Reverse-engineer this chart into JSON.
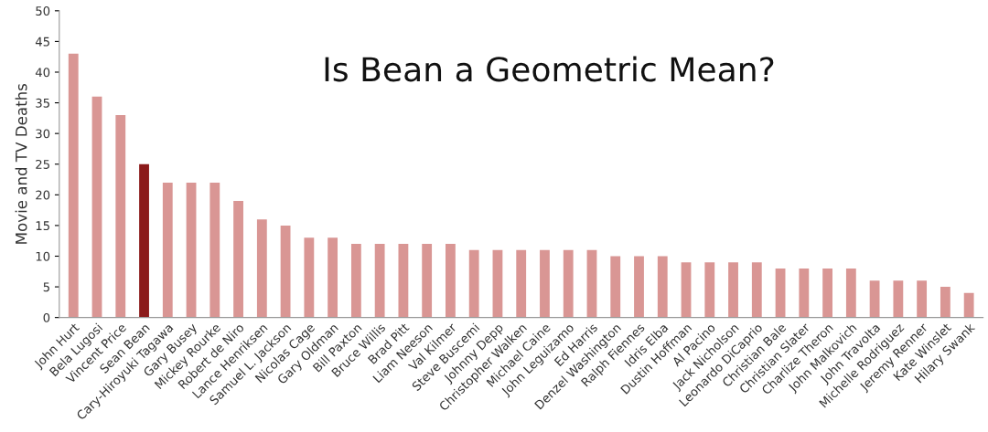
{
  "chart_data": {
    "type": "bar",
    "title": "Is Bean a Geometric Mean?",
    "ylabel": "Movie and TV Deaths",
    "categories": [
      "John Hurt",
      "Bela Lugosi",
      "Vincent Price",
      "Sean Bean",
      "Cary-Hiroyuki Tagawa",
      "Gary Busey",
      "Mickey Rourke",
      "Robert de Niro",
      "Lance Henriksen",
      "Samuel L. Jackson",
      "Nicolas Cage",
      "Gary Oldman",
      "Bill Paxton",
      "Bruce Willis",
      "Brad Pitt",
      "Liam Neeson",
      "Val Kilmer",
      "Steve Buscemi",
      "Johnny Depp",
      "Christopher Walken",
      "Michael Caine",
      "John Leguizamo",
      "Ed Harris",
      "Denzel Washington",
      "Ralph Fiennes",
      "Idris Elba",
      "Dustin Hoffman",
      "Al Pacino",
      "Jack Nicholson",
      "Leonardo DiCaprio",
      "Christian Bale",
      "Christian Slater",
      "Charlize Theron",
      "John Malkovich",
      "John Travolta",
      "Michelle Rodriguez",
      "Jeremy Renner",
      "Kate Winslet",
      "Hilary Swank"
    ],
    "values": [
      43,
      36,
      33,
      25,
      22,
      22,
      22,
      19,
      16,
      15,
      13,
      13,
      12,
      12,
      12,
      12,
      12,
      11,
      11,
      11,
      11,
      11,
      11,
      10,
      10,
      10,
      9,
      9,
      9,
      9,
      8,
      8,
      8,
      8,
      6,
      6,
      6,
      5,
      4
    ],
    "colors": [
      "#d99694",
      "#d99694",
      "#d99694",
      "#8b1a1a",
      "#d99694",
      "#d99694",
      "#d99694",
      "#d99694",
      "#d99694",
      "#d99694",
      "#d99694",
      "#d99694",
      "#d99694",
      "#d99694",
      "#d99694",
      "#d99694",
      "#d99694",
      "#d99694",
      "#d99694",
      "#d99694",
      "#d99694",
      "#d99694",
      "#d99694",
      "#d99694",
      "#d99694",
      "#d99694",
      "#d99694",
      "#d99694",
      "#d99694",
      "#d99694",
      "#d99694",
      "#d99694",
      "#d99694",
      "#d99694",
      "#d99694",
      "#d99694",
      "#d99694",
      "#d99694",
      "#d99694"
    ],
    "ylim": [
      0,
      50
    ],
    "yticks": [
      0,
      5,
      10,
      15,
      20,
      25,
      30,
      35,
      40,
      45,
      50
    ],
    "grid": false,
    "legend": false
  }
}
